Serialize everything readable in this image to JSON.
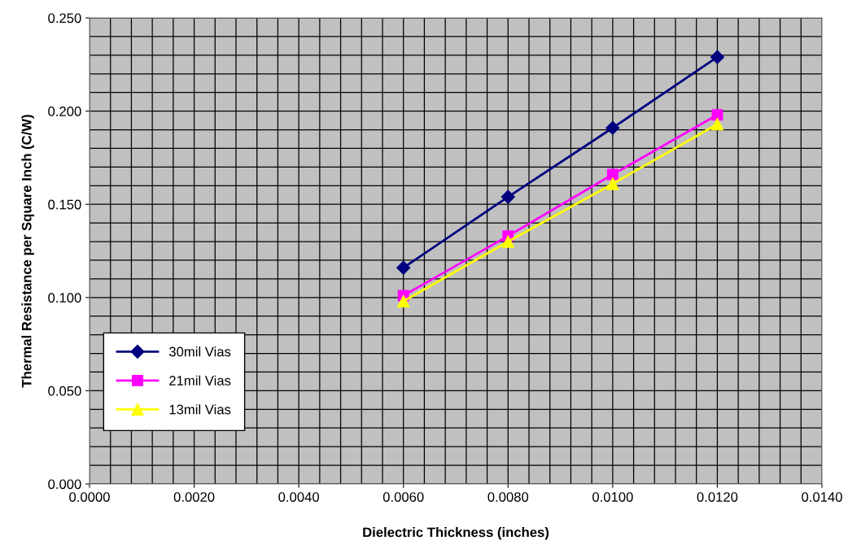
{
  "chart_data": {
    "type": "line",
    "xlabel": "Dielectric Thickness (inches)",
    "ylabel": "Thermal Resistance per Square Inch (C/W)",
    "x": [
      0.006,
      0.008,
      0.01,
      0.012
    ],
    "series": [
      {
        "name": "30mil Vias",
        "color": "#000080",
        "marker": "diamond",
        "values": [
          0.116,
          0.154,
          0.191,
          0.229
        ]
      },
      {
        "name": "21mil Vias",
        "color": "#ff00ff",
        "marker": "square",
        "values": [
          0.101,
          0.133,
          0.166,
          0.198
        ]
      },
      {
        "name": "13mil Vias",
        "color": "#ffff00",
        "marker": "triangle",
        "values": [
          0.098,
          0.13,
          0.161,
          0.193
        ]
      }
    ],
    "xlim": [
      0,
      0.014
    ],
    "xticks": [
      {
        "value": 0,
        "label": "0.0000"
      },
      {
        "value": 0.002,
        "label": "0.0020"
      },
      {
        "value": 0.004,
        "label": "0.0040"
      },
      {
        "value": 0.006,
        "label": "0.0060"
      },
      {
        "value": 0.008,
        "label": "0.0080"
      },
      {
        "value": 0.01,
        "label": "0.0100"
      },
      {
        "value": 0.012,
        "label": "0.0120"
      },
      {
        "value": 0.014,
        "label": "0.0140"
      }
    ],
    "ylim": [
      0,
      0.25
    ],
    "yticks": [
      {
        "value": 0,
        "label": "0.000"
      },
      {
        "value": 0.05,
        "label": "0.050"
      },
      {
        "value": 0.1,
        "label": "0.100"
      },
      {
        "value": 0.15,
        "label": "0.150"
      },
      {
        "value": 0.2,
        "label": "0.200"
      },
      {
        "value": 0.25,
        "label": "0.250"
      }
    ],
    "grid": true,
    "legend": "bottom left",
    "line_style": "solid"
  }
}
